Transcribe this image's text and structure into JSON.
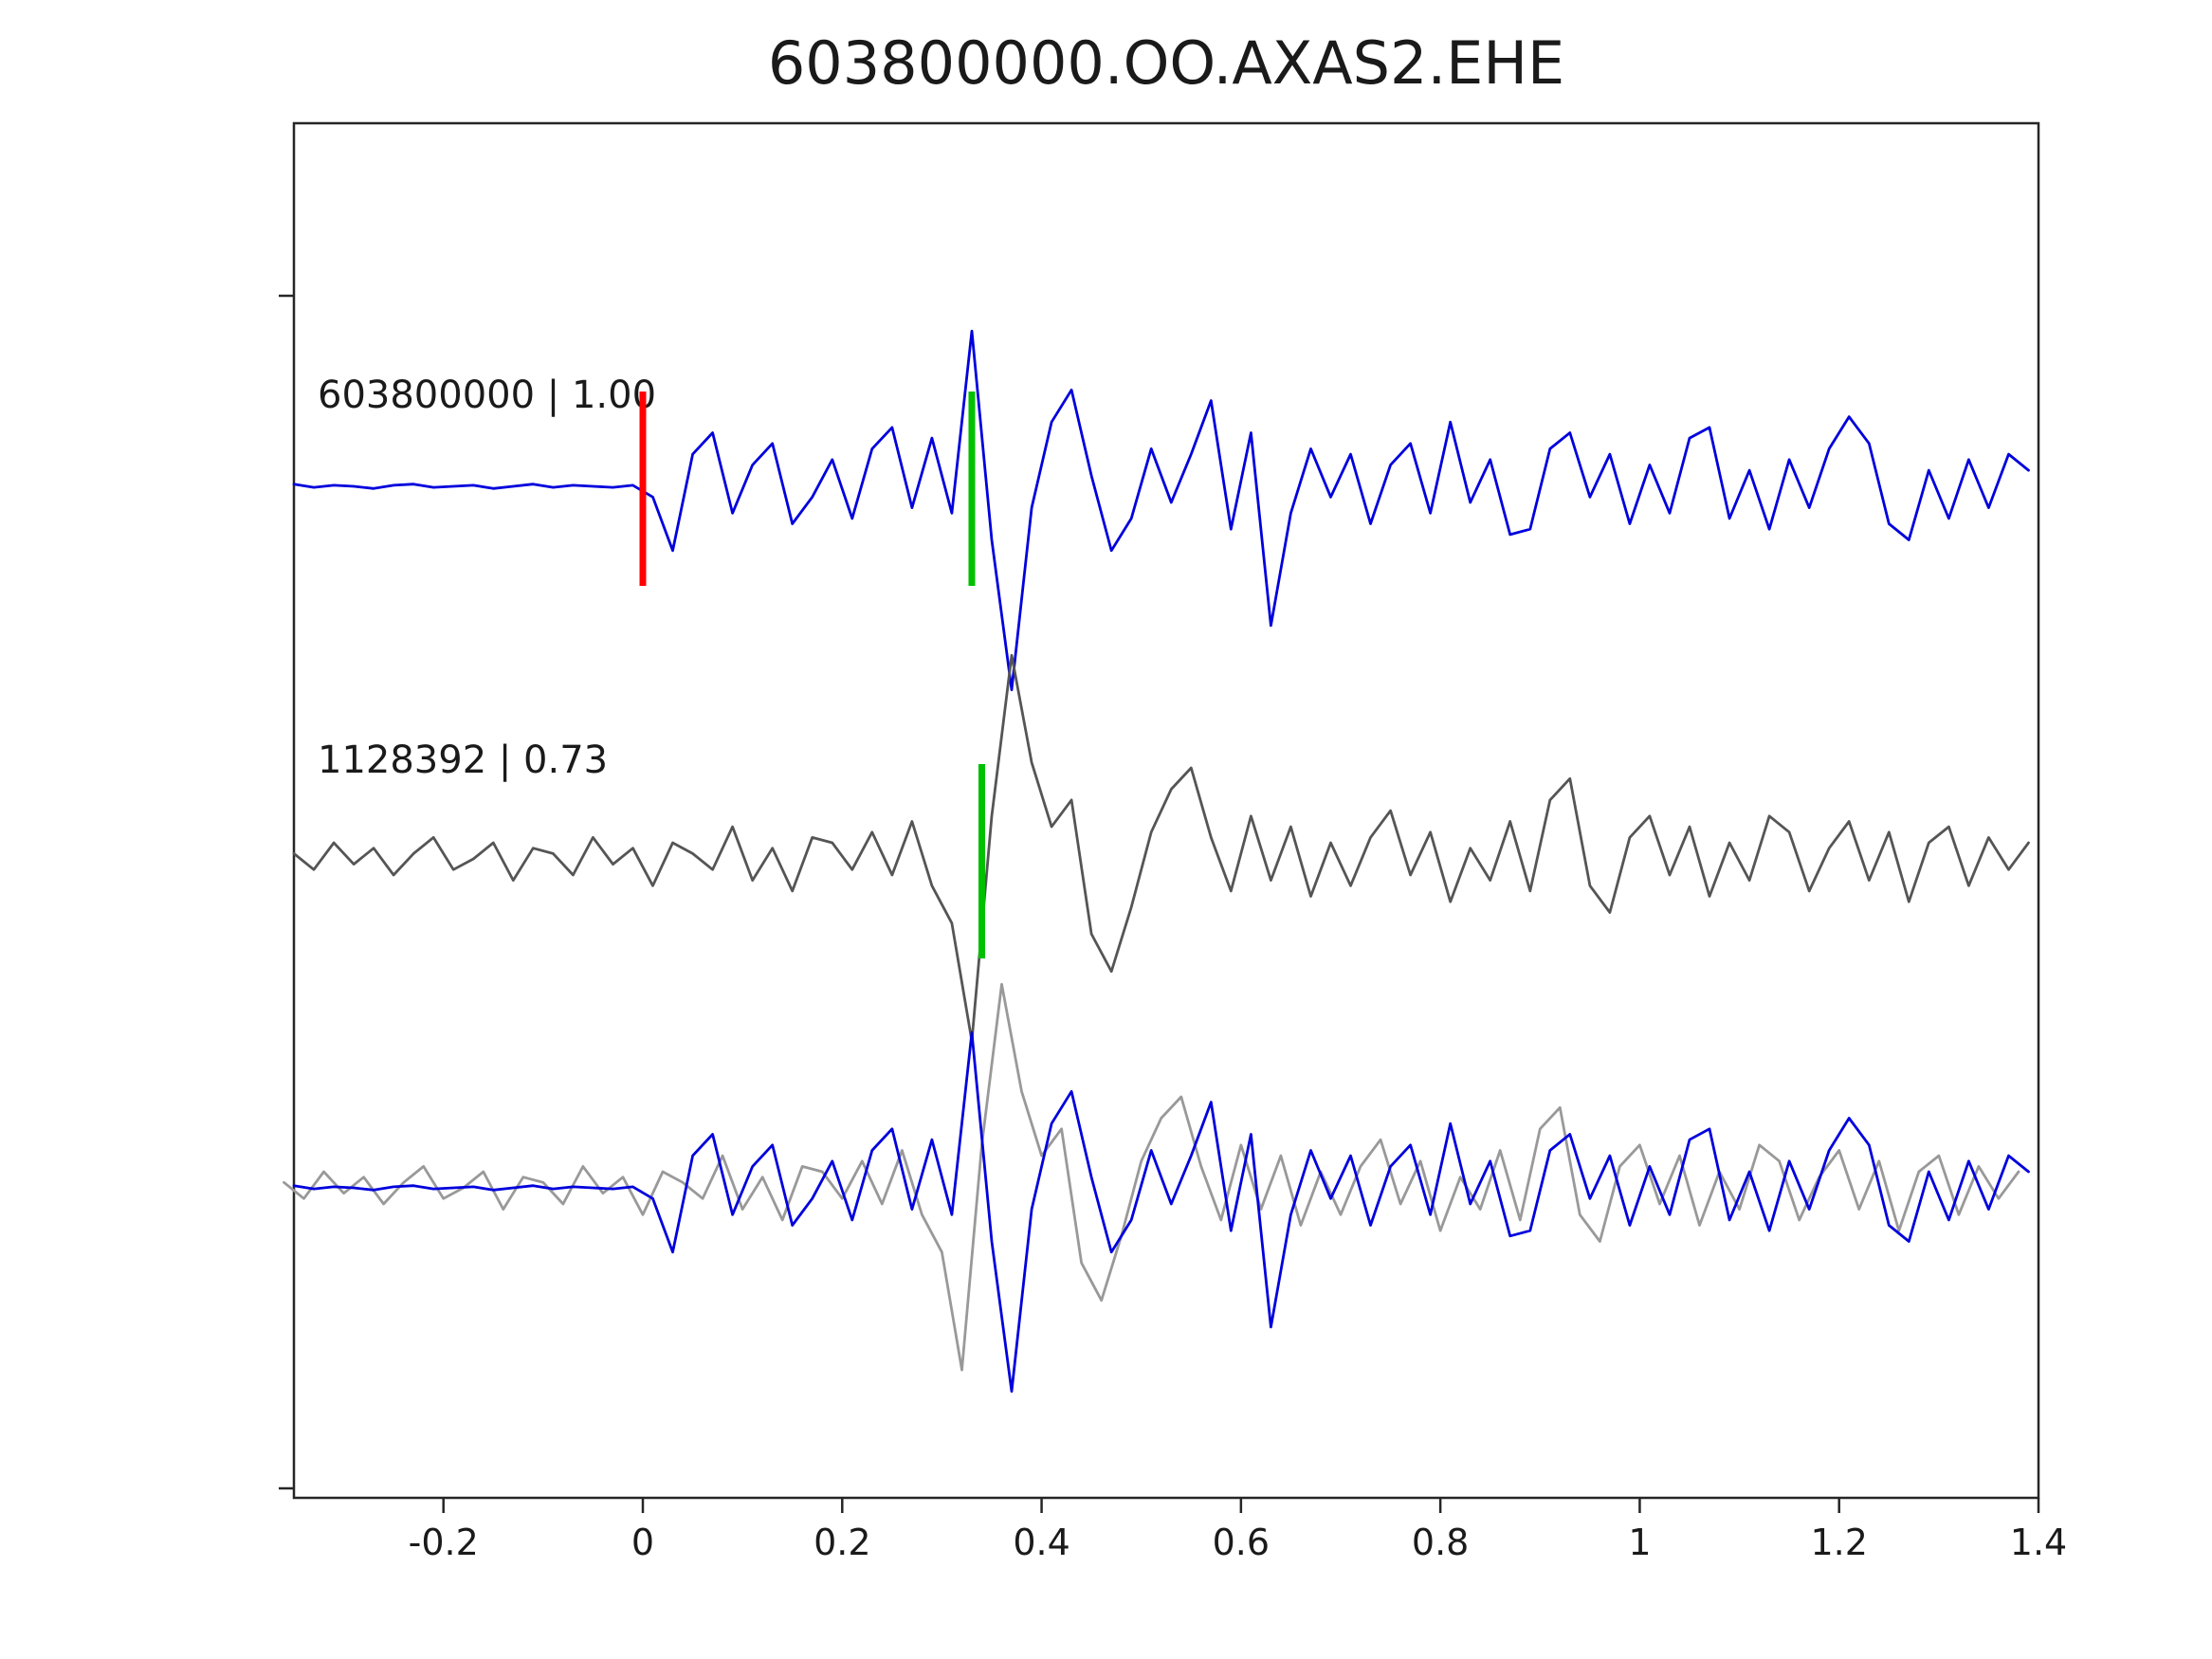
{
  "chart_data": {
    "type": "line",
    "title": "603800000.OO.AXAS2.EHE",
    "xlabel": "",
    "ylabel": "",
    "xlim": [
      -0.35,
      1.4
    ],
    "grid": false,
    "legend": "none",
    "x_tick_values": [
      -0.2,
      0,
      0.2,
      0.4,
      0.6,
      0.8,
      1,
      1.2,
      1.4
    ],
    "x_tick_labels": [
      "-0.2",
      "0",
      "0.2",
      "0.4",
      "0.6",
      "0.8",
      "1",
      "1.2",
      "1.4"
    ],
    "colors": {
      "template_trace": "#0000dd",
      "detection_trace": "#555555",
      "overlay_detection_trace": "#999999",
      "pick_red": "#ff0000",
      "pick_green": "#00c000"
    },
    "traces": [
      {
        "id": "template",
        "label": "603800000 | 1.00",
        "color": "#0000dd",
        "row": "template",
        "x0": -0.35,
        "dx": 0.02,
        "y": [
          0.02,
          -0.01,
          0.01,
          0,
          -0.02,
          0.01,
          0.02,
          -0.01,
          0,
          0.01,
          -0.02,
          0,
          0.02,
          -0.01,
          0.01,
          0,
          -0.01,
          0.01,
          -0.1,
          -0.6,
          0.3,
          0.5,
          -0.25,
          0.2,
          0.4,
          -0.35,
          -0.1,
          0.25,
          -0.3,
          0.35,
          0.55,
          -0.2,
          0.45,
          -0.25,
          1.45,
          -0.5,
          -1.9,
          -0.2,
          0.6,
          0.9,
          0.1,
          -0.6,
          -0.3,
          0.35,
          -0.15,
          0.3,
          0.8,
          -0.4,
          0.5,
          -1.3,
          -0.25,
          0.35,
          -0.1,
          0.3,
          -0.35,
          0.2,
          0.4,
          -0.25,
          0.6,
          -0.15,
          0.25,
          -0.45,
          -0.4,
          0.35,
          0.5,
          -0.1,
          0.3,
          -0.35,
          0.2,
          -0.25,
          0.45,
          0.55,
          -0.3,
          0.15,
          -0.4,
          0.25,
          -0.2,
          0.35,
          0.65,
          0.4,
          -0.35,
          -0.5,
          0.15,
          -0.3,
          0.25,
          -0.2,
          0.3,
          0.15
        ]
      },
      {
        "id": "detection",
        "label": "1128392 | 0.73",
        "color": "#555555",
        "row": "detection",
        "x0": -0.35,
        "dx": 0.02,
        "y": [
          0.05,
          -0.1,
          0.15,
          -0.05,
          0.1,
          -0.15,
          0.05,
          0.2,
          -0.1,
          0.0,
          0.15,
          -0.2,
          0.1,
          0.05,
          -0.15,
          0.2,
          -0.05,
          0.1,
          -0.25,
          0.15,
          0.05,
          -0.1,
          0.3,
          -0.2,
          0.1,
          -0.3,
          0.2,
          0.15,
          -0.1,
          0.25,
          -0.15,
          0.35,
          -0.25,
          -0.6,
          -1.7,
          0.4,
          1.9,
          0.9,
          0.3,
          0.55,
          -0.7,
          -1.05,
          -0.45,
          0.25,
          0.65,
          0.85,
          0.2,
          -0.3,
          0.4,
          -0.2,
          0.3,
          -0.35,
          0.15,
          -0.25,
          0.2,
          0.45,
          -0.15,
          0.25,
          -0.4,
          0.1,
          -0.2,
          0.35,
          -0.3,
          0.55,
          0.75,
          -0.25,
          -0.5,
          0.2,
          0.4,
          -0.15,
          0.3,
          -0.35,
          0.15,
          -0.2,
          0.4,
          0.25,
          -0.3,
          0.1,
          0.35,
          -0.2,
          0.25,
          -0.4,
          0.15,
          0.3,
          -0.25,
          0.2,
          -0.1,
          0.15
        ]
      },
      {
        "id": "overlay-detection",
        "color": "#999999",
        "row": "overlay",
        "y_ref": "detection",
        "x_shift": -0.01
      },
      {
        "id": "overlay-template",
        "color": "#0000dd",
        "row": "overlay",
        "y_ref": "template",
        "x_shift": 0
      }
    ],
    "markers": [
      {
        "trace": "template",
        "x": 0.0,
        "color": "#ff0000",
        "name": "pick-red-template"
      },
      {
        "trace": "template",
        "x": 0.33,
        "color": "#00c000",
        "name": "pick-green-template"
      },
      {
        "trace": "detection",
        "x": 0.34,
        "color": "#00c000",
        "name": "pick-green-detection"
      }
    ]
  }
}
